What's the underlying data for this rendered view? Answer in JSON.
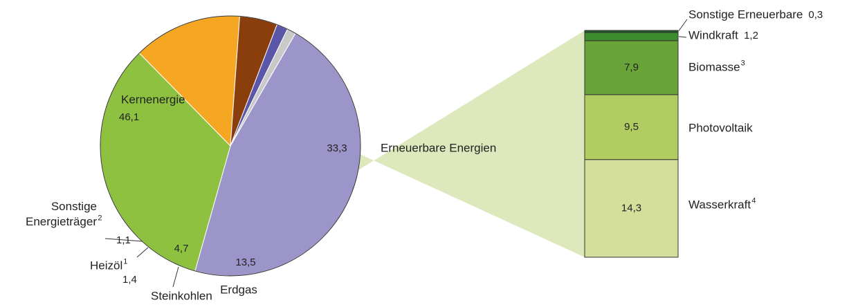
{
  "chart_data": {
    "type": "pie-of-bar",
    "categories": [
      "Kernenergie",
      "Erneuerbare Energien",
      "Erdgas",
      "Steinkohlen",
      "Heizöl",
      "Sonstige Energieträger"
    ],
    "footnotes": [
      null,
      null,
      null,
      null,
      "1",
      "2"
    ],
    "values": [
      46.1,
      33.3,
      13.5,
      4.7,
      1.4,
      1.1
    ],
    "value_labels": [
      "46,1",
      "33,3",
      "13,5",
      "4,7",
      "1,4",
      "1,1"
    ],
    "colors": [
      "#9c95c9",
      "#8dc13f",
      "#f5a623",
      "#8a3e0c",
      "#5b57a8",
      "#c9c9c9"
    ],
    "breakdown": {
      "of": 1,
      "categories": [
        "Wasserkraft",
        "Photovoltaik",
        "Biomasse",
        "Windkraft",
        "Sonstige Erneuerbare"
      ],
      "footnotes": [
        "4",
        null,
        "3",
        null,
        null
      ],
      "values": [
        14.3,
        9.5,
        7.9,
        1.2,
        0.3
      ],
      "value_labels": [
        "14,3",
        "9,5",
        "7,9",
        "1,2",
        "0,3"
      ],
      "colors": [
        "#d4df9b",
        "#b1cc60",
        "#6aa337",
        "#3e8a2f",
        "#1f5b24"
      ],
      "band_color": "#dde8bd"
    }
  }
}
